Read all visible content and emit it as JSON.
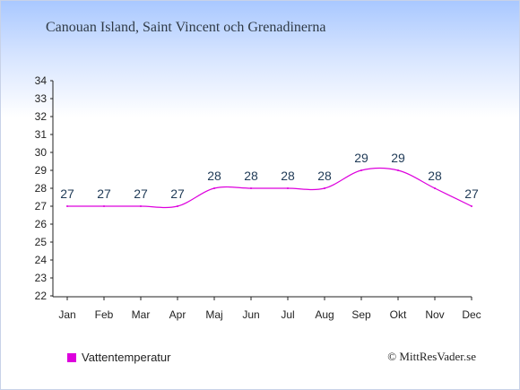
{
  "title": "Canouan Island, Saint Vincent och Grenadinerna",
  "credit": "© MittResVader.se",
  "colors": {
    "series": "#dd00dd",
    "axis": "#222222",
    "label": "#1f3a56"
  },
  "chart_data": {
    "type": "line",
    "categories": [
      "Jan",
      "Feb",
      "Mar",
      "Apr",
      "Maj",
      "Jun",
      "Jul",
      "Aug",
      "Sep",
      "Okt",
      "Nov",
      "Dec"
    ],
    "series": [
      {
        "name": "Vattentemperatur",
        "values": [
          27,
          27,
          27,
          27,
          28,
          28,
          28,
          28,
          29,
          29,
          28,
          27
        ]
      }
    ],
    "data_labels": [
      "27",
      "27",
      "27",
      "27",
      "28",
      "28",
      "28",
      "28",
      "29",
      "29",
      "28",
      "27"
    ],
    "ylim": [
      22,
      34
    ],
    "yticks": [
      "22",
      "23",
      "24",
      "25",
      "26",
      "27",
      "28",
      "29",
      "30",
      "31",
      "32",
      "33",
      "34"
    ],
    "grid": false,
    "legend_position": "bottom-left"
  }
}
